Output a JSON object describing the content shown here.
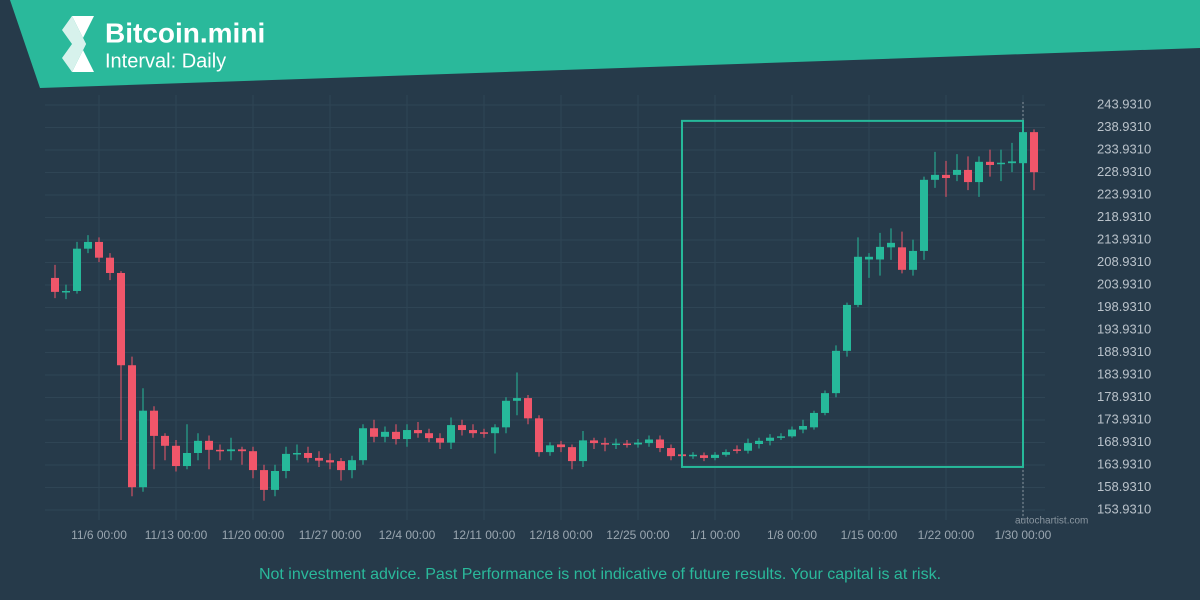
{
  "header": {
    "title": "Bitcoin.mini",
    "subtitle": "Interval: Daily"
  },
  "footer": {
    "disclaimer": "Not investment advice. Past Performance is not indicative of future results. Your capital is at risk.",
    "watermark": "autochartist.com"
  },
  "chart_data": {
    "type": "candlestick",
    "up_color": "#26b99a",
    "down_color": "#f0566a",
    "grid": true,
    "categories": [
      null,
      null,
      null,
      null,
      "11/6 00:00",
      null,
      null,
      null,
      null,
      null,
      null,
      "11/13 00:00",
      null,
      null,
      null,
      null,
      null,
      null,
      "11/20 00:00",
      null,
      null,
      null,
      null,
      null,
      null,
      "11/27 00:00",
      null,
      null,
      null,
      null,
      null,
      null,
      "12/4 00:00",
      null,
      null,
      null,
      null,
      null,
      null,
      "12/11 00:00",
      null,
      null,
      null,
      null,
      null,
      null,
      "12/18 00:00",
      null,
      null,
      null,
      null,
      null,
      null,
      "12/25 00:00",
      null,
      null,
      null,
      null,
      null,
      null,
      "1/1 00:00",
      null,
      null,
      null,
      null,
      null,
      null,
      "1/8 00:00",
      null,
      null,
      null,
      null,
      null,
      null,
      "1/15 00:00",
      null,
      null,
      null,
      null,
      null,
      null,
      "1/22 00:00",
      null,
      null,
      null,
      null,
      null,
      null,
      "1/30 00:00",
      null
    ],
    "open": [
      205.5,
      202.3,
      202.6,
      212,
      213.5,
      210,
      206.6,
      186.1,
      159,
      176,
      170.4,
      168.2,
      163.7,
      166.6,
      169.3,
      167.3,
      167,
      167.4,
      167,
      162.8,
      158.4,
      162.6,
      166.3,
      166.6,
      165.5,
      165,
      164.8,
      162.8,
      165,
      172.1,
      170.2,
      171.3,
      169.7,
      171.7,
      171,
      169.9,
      168.9,
      172.8,
      171.7,
      171.2,
      171,
      172.3,
      178.2,
      178.8,
      174.3,
      166.8,
      168.5,
      167.9,
      164.8,
      169.4,
      168.8,
      168.6,
      168.7,
      168.5,
      168.8,
      169.6,
      167.7,
      166.3,
      165.9,
      166.1,
      165.5,
      166.2,
      167.4,
      167.1,
      168.6,
      169.3,
      170,
      170.3,
      171.8,
      172.3,
      175.5,
      179.9,
      189.3,
      199.5,
      209.6,
      209.6,
      212.3,
      212.3,
      207.3,
      211.5,
      227.3,
      228.4,
      228.4,
      229.5,
      226.8,
      231.3,
      230.8,
      231,
      231,
      237.9
    ],
    "high": [
      208.4,
      204,
      213.5,
      215,
      214.5,
      211,
      207,
      188,
      181,
      177,
      171,
      169.5,
      173,
      171,
      170.5,
      168.5,
      170,
      168,
      168,
      164,
      164,
      168,
      168.5,
      168,
      167,
      166.5,
      165.5,
      166,
      173,
      174,
      172.5,
      173,
      173,
      173.5,
      172,
      171,
      174.5,
      174,
      173,
      172,
      173,
      179,
      184.5,
      179.5,
      175,
      169,
      169.3,
      168.5,
      171.5,
      170,
      170,
      169.8,
      169.5,
      169.7,
      170.5,
      170.5,
      168.5,
      167,
      166.8,
      166.7,
      166.8,
      167.4,
      168.3,
      169.8,
      170,
      170.8,
      171,
      172.5,
      174,
      176,
      180.5,
      190.5,
      200,
      214.5,
      211,
      215.5,
      216.5,
      215.8,
      214,
      228,
      233.5,
      231.5,
      233,
      232.5,
      232.5,
      234,
      234,
      235.5,
      240,
      238.5
    ],
    "low": [
      201,
      200.8,
      202,
      211,
      209,
      205,
      169.5,
      157,
      158,
      163,
      165,
      162.5,
      163,
      165,
      163,
      165,
      165,
      164,
      161,
      156,
      157,
      161,
      165,
      164.5,
      163.5,
      163,
      160.5,
      161,
      164,
      169,
      169,
      168.5,
      168,
      170,
      169,
      167.5,
      167.5,
      170.5,
      170,
      170,
      166.5,
      171,
      175,
      173,
      165.8,
      166,
      166.8,
      163,
      163.5,
      167.5,
      167,
      167.5,
      167.8,
      167.8,
      168,
      166.8,
      165,
      165.3,
      165.3,
      164.8,
      165,
      165.8,
      166.5,
      166.5,
      167.6,
      168.3,
      169.5,
      170,
      171,
      171.8,
      175,
      179,
      188,
      199,
      205.5,
      206,
      209.5,
      206.5,
      206,
      209.5,
      225.5,
      223.5,
      227,
      225,
      223.5,
      228,
      227,
      229,
      230,
      225
    ],
    "close": [
      202.4,
      202.6,
      212,
      213.5,
      210,
      206.6,
      186.1,
      159,
      176,
      170.4,
      168.2,
      163.7,
      166.6,
      169.3,
      167.3,
      167,
      167.4,
      167,
      162.8,
      158.4,
      162.6,
      166.4,
      166.6,
      165.5,
      164.9,
      164.5,
      162.8,
      165,
      172.1,
      170.2,
      171.3,
      169.7,
      171.7,
      171,
      169.9,
      168.9,
      172.8,
      171.7,
      171,
      171,
      172.3,
      178.2,
      178.8,
      174.3,
      166.8,
      168.3,
      167.9,
      164.8,
      169.4,
      168.8,
      168.6,
      168.7,
      168.5,
      168.9,
      169.6,
      167.7,
      165.9,
      165.9,
      166.2,
      165.5,
      166.2,
      166.8,
      167.1,
      168.8,
      169.3,
      170,
      170.3,
      171.8,
      172.6,
      175.5,
      179.9,
      189.3,
      199.5,
      210.2,
      210.2,
      212.4,
      213.3,
      207.3,
      211.5,
      227.3,
      228.4,
      227.7,
      229.5,
      226.8,
      231.3,
      230.6,
      231.1,
      231.4,
      237.9,
      229
    ],
    "ylim": [
      151.71,
      246.15
    ],
    "yticks": [
      {
        "value": 153.931,
        "label": "153.9310"
      },
      {
        "value": 158.931,
        "label": "158.9310"
      },
      {
        "value": 163.931,
        "label": "163.9310"
      },
      {
        "value": 168.931,
        "label": "168.9310"
      },
      {
        "value": 173.931,
        "label": "173.9310"
      },
      {
        "value": 178.931,
        "label": "178.9310"
      },
      {
        "value": 183.931,
        "label": "183.9310"
      },
      {
        "value": 188.931,
        "label": "188.9310"
      },
      {
        "value": 193.931,
        "label": "193.9310"
      },
      {
        "value": 198.931,
        "label": "198.9310"
      },
      {
        "value": 203.931,
        "label": "203.9310"
      },
      {
        "value": 208.931,
        "label": "208.9310"
      },
      {
        "value": 213.931,
        "label": "213.9310"
      },
      {
        "value": 218.931,
        "label": "218.9310"
      },
      {
        "value": 223.931,
        "label": "223.9310"
      },
      {
        "value": 228.931,
        "label": "228.9310"
      },
      {
        "value": 233.931,
        "label": "233.9310"
      },
      {
        "value": 238.931,
        "label": "238.9310"
      },
      {
        "value": 243.931,
        "label": "243.9310"
      }
    ],
    "highlight": {
      "x": [
        57.5,
        88.5
      ],
      "y": [
        163.5,
        240.4
      ],
      "color": "#26b99a"
    }
  }
}
